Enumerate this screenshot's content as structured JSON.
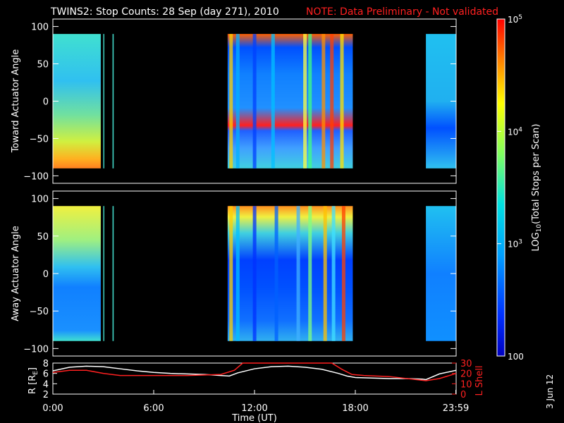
{
  "header": {
    "title": "TWINS2: Stop Counts: 28 Sep (day 271), 2010",
    "note": "NOTE: Data Preliminary - Not validated"
  },
  "footer": {
    "date_stamp": "3 Jun 12"
  },
  "colors": {
    "background": "#000000",
    "axes": "#ffffff",
    "note": "#ff2020",
    "r_line": "#ffffff",
    "l_shell_line": "#ff2020"
  },
  "chart_data": [
    {
      "type": "heatmap",
      "name": "toward",
      "ylabel": "Toward Actuator Angle",
      "xlim": [
        0,
        24
      ],
      "ylim": [
        -110,
        110
      ],
      "yticks": [
        -100,
        -50,
        0,
        50,
        100
      ],
      "data_extent": [
        -90,
        90
      ],
      "coverage_hours": [
        [
          0.0,
          2.85
        ],
        [
          3.0,
          3.05
        ],
        [
          3.55,
          3.62
        ],
        [
          10.4,
          17.85
        ],
        [
          22.2,
          24.0
        ]
      ],
      "colormap": "rainbow",
      "notes": "log10 counts; high (yellow-orange) at low angles early in day, mixed orange/blue 10.4-17.8 UT"
    },
    {
      "type": "heatmap",
      "name": "away",
      "ylabel": "Away Actuator Angle",
      "xlabel": "",
      "xlim": [
        0,
        24
      ],
      "ylim": [
        -110,
        110
      ],
      "yticks": [
        -100,
        -50,
        0,
        50,
        100
      ],
      "data_extent": [
        -90,
        90
      ],
      "coverage_hours": [
        [
          0.0,
          2.85
        ],
        [
          3.0,
          3.05
        ],
        [
          3.55,
          3.62
        ],
        [
          10.4,
          17.85
        ],
        [
          22.2,
          24.0
        ]
      ],
      "colormap": "rainbow",
      "notes": "high (yellow) at high angles early, mostly blue 11-17 UT"
    },
    {
      "type": "line",
      "name": "orbit",
      "xlabel": "Time (UT)",
      "xticks": [
        "0:00",
        "6:00",
        "12:00",
        "18:00",
        "23:59"
      ],
      "xtick_hours": [
        0,
        6,
        12,
        18,
        23.98
      ],
      "left_axis": {
        "label": "R [R",
        "label_sub": "E",
        "label_close": "]",
        "ylim": [
          2,
          8
        ],
        "ticks": [
          "2",
          "4",
          "6",
          "8"
        ]
      },
      "right_axis": {
        "label": "L Shell",
        "ylim": [
          0,
          30
        ],
        "ticks": [
          "0",
          "10",
          "20",
          "30"
        ]
      },
      "series": [
        {
          "axis": "left",
          "color": "#ffffff",
          "x": [
            0,
            1,
            2,
            3,
            4,
            5,
            6,
            7,
            8,
            9,
            10,
            10.5,
            11,
            12,
            13,
            14,
            15,
            16,
            17,
            17.5,
            18,
            19,
            20,
            21,
            22,
            22.2,
            23,
            24
          ],
          "y": [
            6.5,
            7.2,
            7.4,
            7.3,
            6.9,
            6.5,
            6.2,
            6.0,
            5.9,
            5.8,
            5.6,
            5.5,
            6.1,
            6.9,
            7.3,
            7.4,
            7.2,
            6.8,
            6.0,
            5.5,
            5.2,
            5.1,
            5.0,
            5.0,
            4.9,
            4.8,
            5.9,
            6.6
          ]
        },
        {
          "axis": "right",
          "color": "#ff2020",
          "x": [
            0,
            1,
            2,
            3,
            4,
            6,
            8,
            10,
            10.8,
            11.3,
            16.6,
            17.2,
            17.8,
            18.5,
            20,
            22.2,
            23,
            24
          ],
          "y": [
            21,
            23,
            23,
            20,
            18,
            18,
            18,
            19,
            23,
            30,
            30,
            24,
            19,
            18,
            17,
            13,
            15,
            20
          ]
        }
      ]
    },
    {
      "type": "colorbar",
      "label": "LOG",
      "label_sub": "10",
      "label_rest": "(Total Stops per Scan)",
      "scale": "log",
      "range": [
        100,
        100000
      ],
      "ticks": [
        {
          "value": 100,
          "base": "100",
          "exp": ""
        },
        {
          "value": 1000,
          "base": "10",
          "exp": "3"
        },
        {
          "value": 10000,
          "base": "10",
          "exp": "4"
        },
        {
          "value": 100000,
          "base": "10",
          "exp": "5"
        }
      ]
    }
  ]
}
